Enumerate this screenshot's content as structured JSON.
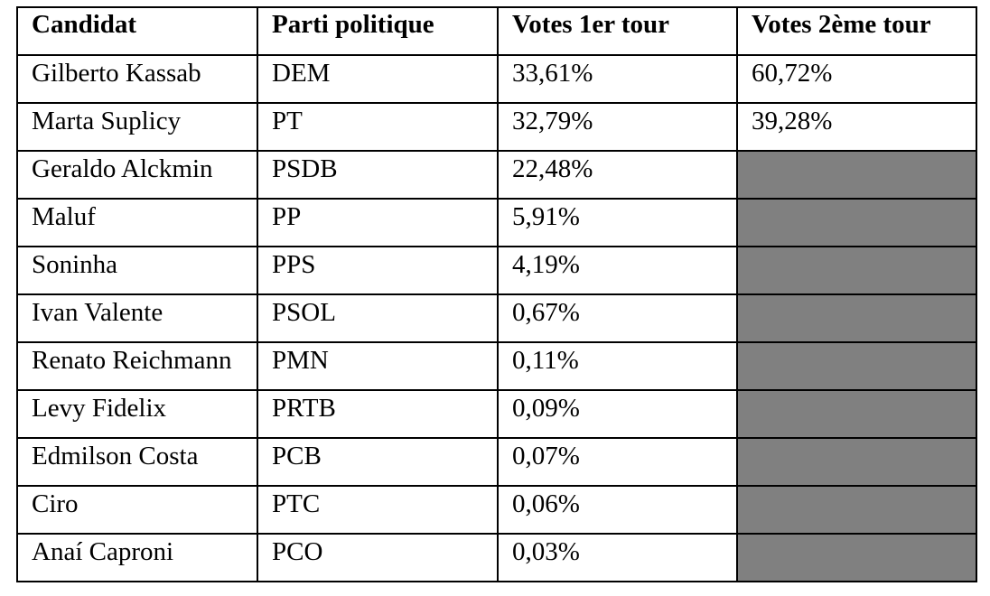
{
  "table": {
    "headers": [
      "Candidat",
      "Parti politique",
      "Votes 1er tour",
      "Votes 2ème tour"
    ],
    "rows": [
      {
        "candidate": "Gilberto Kassab",
        "party": "DEM",
        "round1": "33,61%",
        "round2": "60,72%"
      },
      {
        "candidate": "Marta Suplicy",
        "party": "PT",
        "round1": "32,79%",
        "round2": "39,28%"
      },
      {
        "candidate": "Geraldo Alckmin",
        "party": "PSDB",
        "round1": "22,48%",
        "round2": null
      },
      {
        "candidate": "Maluf",
        "party": "PP",
        "round1": "5,91%",
        "round2": null
      },
      {
        "candidate": "Soninha",
        "party": "PPS",
        "round1": "4,19%",
        "round2": null
      },
      {
        "candidate": "Ivan Valente",
        "party": "PSOL",
        "round1": "0,67%",
        "round2": null
      },
      {
        "candidate": "Renato Reichmann",
        "party": "PMN",
        "round1": "0,11%",
        "round2": null
      },
      {
        "candidate": "Levy Fidelix",
        "party": "PRTB",
        "round1": "0,09%",
        "round2": null
      },
      {
        "candidate": "Edmilson Costa",
        "party": "PCB",
        "round1": "0,07%",
        "round2": null
      },
      {
        "candidate": "Ciro",
        "party": "PTC",
        "round1": "0,06%",
        "round2": null
      },
      {
        "candidate": "Anaí Caproni",
        "party": "PCO",
        "round1": "0,03%",
        "round2": null
      }
    ]
  },
  "colors": {
    "border": "#000000",
    "empty_cell": "#808080",
    "background": "#ffffff"
  }
}
